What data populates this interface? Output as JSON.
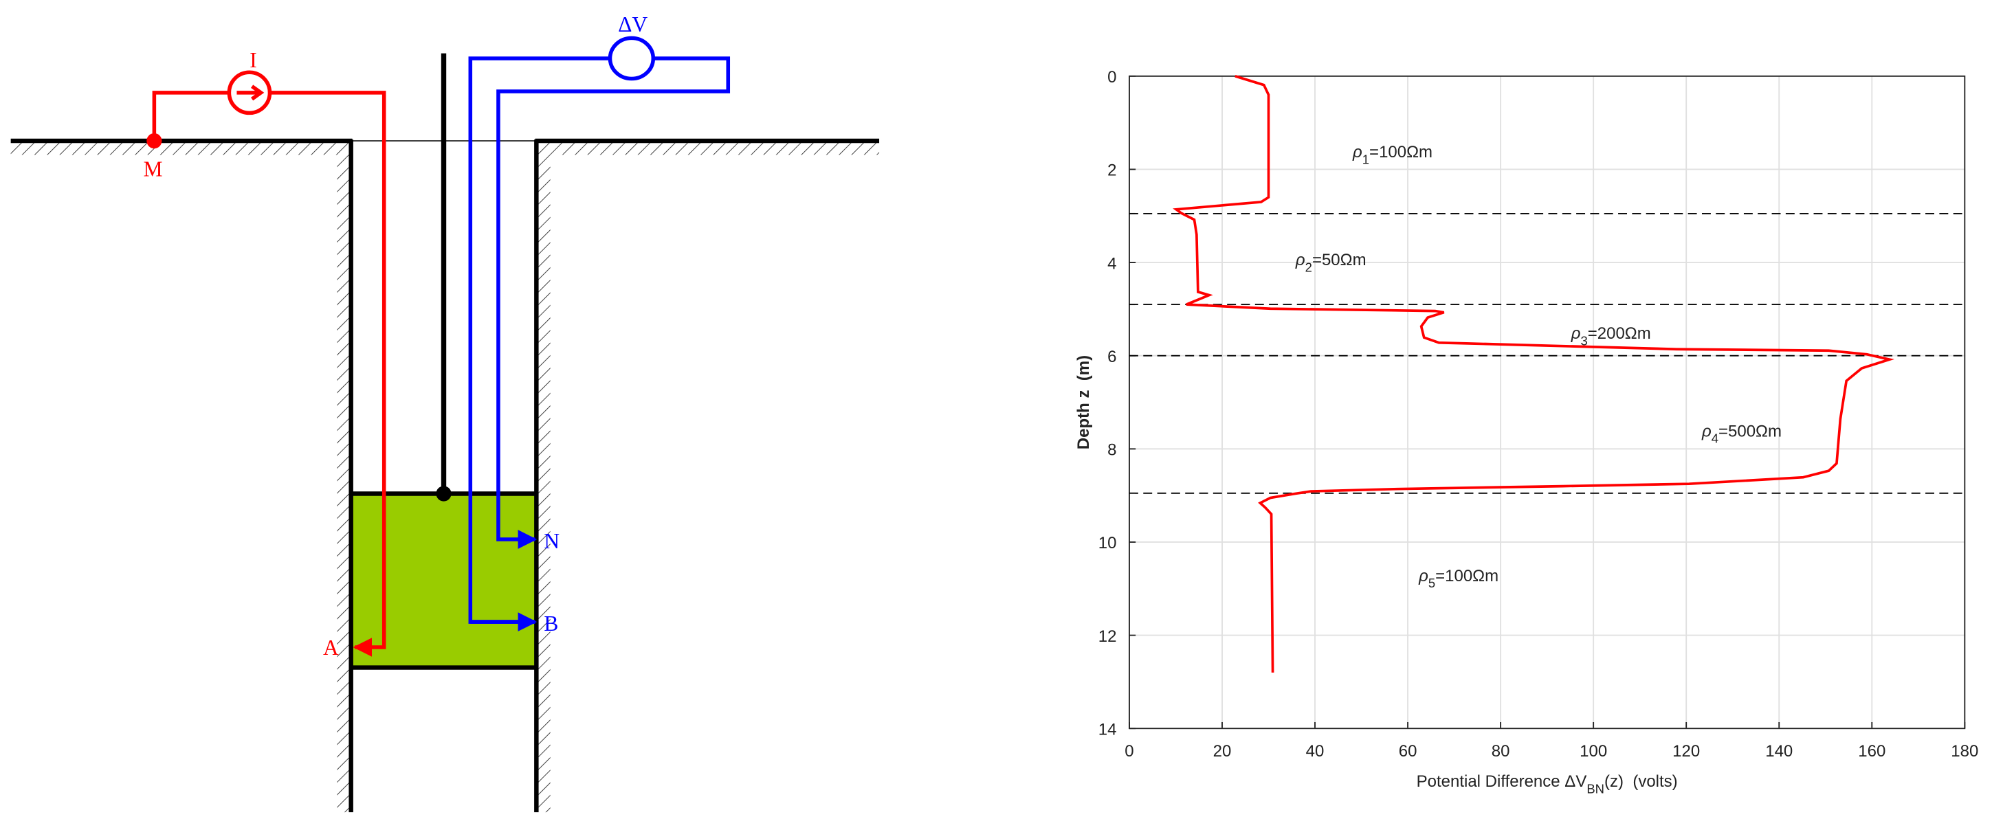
{
  "diagram": {
    "labels": {
      "current": "I",
      "voltage": "ΔV",
      "m": "M",
      "n": "N",
      "b": "B",
      "a": "A"
    }
  },
  "chart_data": {
    "type": "line",
    "xlabel": [
      "Potential Difference ΔV",
      "BN",
      "(z)  (volts)"
    ],
    "ylabel": "Depth z  (m)",
    "xlim": [
      0,
      180
    ],
    "xticks": [
      0,
      20,
      40,
      60,
      80,
      100,
      120,
      140,
      160,
      180
    ],
    "ylim": [
      0,
      14
    ],
    "yticks": [
      0,
      2,
      4,
      6,
      8,
      10,
      12,
      14
    ],
    "y_reversed": true,
    "grid": true,
    "color": "#ff0000",
    "x": [
      22.8,
      29,
      30,
      30,
      28.4,
      10.1,
      11.2,
      14,
      14.5,
      14.8,
      17.2,
      12.3,
      30.4,
      65.9,
      67.8,
      64.3,
      62.9,
      63.5,
      66.7,
      117.9,
      150.7,
      158.9,
      163.8,
      157.8,
      154.5,
      153.2,
      152.4,
      150.7,
      145.2,
      120.6,
      93.3,
      57.7,
      39.1,
      35.8,
      30.4,
      28.2,
      29.3,
      30.6,
      30.9
    ],
    "y": [
      0,
      0.19,
      0.4,
      2.6,
      2.7,
      2.86,
      2.94,
      3.08,
      3.4,
      4.63,
      4.7,
      4.9,
      4.99,
      5.04,
      5.07,
      5.18,
      5.37,
      5.61,
      5.72,
      5.86,
      5.89,
      5.97,
      6.08,
      6.27,
      6.54,
      7.36,
      8.31,
      8.47,
      8.61,
      8.75,
      8.8,
      8.86,
      8.91,
      8.96,
      9.05,
      9.16,
      9.26,
      9.4,
      12.8
    ],
    "boundaries": [
      2.95,
      4.9,
      6,
      8.95
    ],
    "annotations": [
      {
        "symbol": "ρ",
        "sub": "1",
        "text": "=100Ωm"
      },
      {
        "symbol": "ρ",
        "sub": "2",
        "text": "=50Ωm"
      },
      {
        "symbol": "ρ",
        "sub": "3",
        "text": "=200Ωm"
      },
      {
        "symbol": "ρ",
        "sub": "4",
        "text": "=500Ωm"
      },
      {
        "symbol": "ρ",
        "sub": "5",
        "text": "=100Ωm"
      }
    ]
  }
}
